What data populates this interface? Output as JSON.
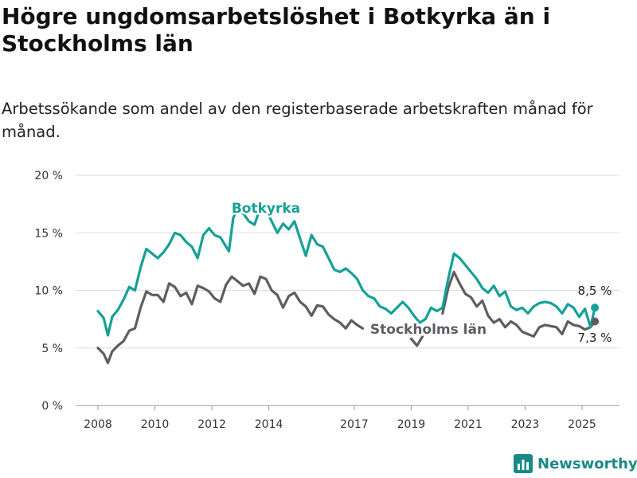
{
  "title": "Högre ungdomsarbetslöshet i Botkyrka än i Stockholms län",
  "subtitle": "Arbetssökande som andel av den registerbaserade arbetskraften månad för månad.",
  "brand": {
    "name": "Newsworthy",
    "color": "#1b8a86",
    "icon": "bar-chart-logo-icon"
  },
  "chart_data": {
    "type": "line",
    "ylim": [
      0,
      20
    ],
    "yticks": [
      0,
      5,
      10,
      15,
      20
    ],
    "ytick_labels": [
      "0 %",
      "5 %",
      "10 %",
      "15 %",
      "20 %"
    ],
    "xlim": [
      2007.5,
      2025.8
    ],
    "xticks": [
      2008,
      2010,
      2012,
      2014,
      2017,
      2019,
      2021,
      2023,
      2025
    ],
    "xtick_labels": [
      "2008",
      "2010",
      "2012",
      "2014",
      "2017",
      "2019",
      "2021",
      "2023",
      "2025"
    ],
    "grid": true,
    "series": [
      {
        "name": "Botkyrka",
        "color": "#14a196",
        "end_label": "8,5 %",
        "points": [
          [
            2008.0,
            8.2
          ],
          [
            2008.2,
            7.6
          ],
          [
            2008.35,
            6.1
          ],
          [
            2008.5,
            7.7
          ],
          [
            2008.7,
            8.3
          ],
          [
            2008.9,
            9.2
          ],
          [
            2009.1,
            10.3
          ],
          [
            2009.3,
            10.0
          ],
          [
            2009.5,
            12.0
          ],
          [
            2009.7,
            13.6
          ],
          [
            2009.9,
            13.2
          ],
          [
            2010.1,
            12.8
          ],
          [
            2010.3,
            13.3
          ],
          [
            2010.5,
            14.0
          ],
          [
            2010.7,
            15.0
          ],
          [
            2010.9,
            14.8
          ],
          [
            2011.1,
            14.2
          ],
          [
            2011.3,
            13.8
          ],
          [
            2011.5,
            12.8
          ],
          [
            2011.7,
            14.8
          ],
          [
            2011.9,
            15.4
          ],
          [
            2012.1,
            14.8
          ],
          [
            2012.3,
            14.6
          ],
          [
            2012.5,
            13.8
          ],
          [
            2012.6,
            13.4
          ],
          [
            2012.75,
            16.3
          ],
          [
            2012.9,
            17.0
          ],
          [
            2013.1,
            16.7
          ],
          [
            2013.3,
            16.0
          ],
          [
            2013.5,
            15.7
          ],
          [
            2013.7,
            17.2
          ],
          [
            2013.9,
            17.0
          ],
          [
            2014.1,
            16.0
          ],
          [
            2014.3,
            15.0
          ],
          [
            2014.5,
            15.8
          ],
          [
            2014.7,
            15.3
          ],
          [
            2014.9,
            16.0
          ],
          [
            2015.1,
            14.5
          ],
          [
            2015.3,
            13.0
          ],
          [
            2015.5,
            14.8
          ],
          [
            2015.7,
            14.0
          ],
          [
            2015.9,
            13.8
          ],
          [
            2016.1,
            12.8
          ],
          [
            2016.3,
            11.8
          ],
          [
            2016.5,
            11.6
          ],
          [
            2016.7,
            11.9
          ],
          [
            2016.9,
            11.5
          ],
          [
            2017.1,
            11.0
          ],
          [
            2017.3,
            10.0
          ],
          [
            2017.5,
            9.5
          ],
          [
            2017.7,
            9.3
          ],
          [
            2017.9,
            8.6
          ],
          [
            2018.1,
            8.4
          ],
          [
            2018.3,
            8.0
          ],
          [
            2018.5,
            8.5
          ],
          [
            2018.7,
            9.0
          ],
          [
            2018.9,
            8.5
          ],
          [
            2019.1,
            7.8
          ],
          [
            2019.3,
            7.2
          ],
          [
            2019.5,
            7.5
          ],
          [
            2019.7,
            8.5
          ],
          [
            2019.9,
            8.2
          ],
          [
            2020.1,
            8.5
          ],
          [
            2020.3,
            11.0
          ],
          [
            2020.5,
            13.2
          ],
          [
            2020.7,
            12.8
          ],
          [
            2020.9,
            12.2
          ],
          [
            2021.1,
            11.6
          ],
          [
            2021.3,
            11.0
          ],
          [
            2021.5,
            10.2
          ],
          [
            2021.7,
            9.8
          ],
          [
            2021.9,
            10.4
          ],
          [
            2022.1,
            9.5
          ],
          [
            2022.3,
            9.9
          ],
          [
            2022.5,
            8.6
          ],
          [
            2022.7,
            8.3
          ],
          [
            2022.9,
            8.5
          ],
          [
            2023.1,
            8.0
          ],
          [
            2023.3,
            8.6
          ],
          [
            2023.5,
            8.9
          ],
          [
            2023.7,
            9.0
          ],
          [
            2023.9,
            8.9
          ],
          [
            2024.1,
            8.6
          ],
          [
            2024.3,
            8.0
          ],
          [
            2024.5,
            8.8
          ],
          [
            2024.7,
            8.5
          ],
          [
            2024.9,
            7.7
          ],
          [
            2025.1,
            8.4
          ],
          [
            2025.3,
            6.8
          ],
          [
            2025.45,
            8.5
          ]
        ]
      },
      {
        "name": "Stockholms län",
        "color": "#5e5d63",
        "end_label": "7,3 %",
        "points": [
          [
            2008.0,
            5.0
          ],
          [
            2008.2,
            4.5
          ],
          [
            2008.35,
            3.7
          ],
          [
            2008.5,
            4.7
          ],
          [
            2008.7,
            5.2
          ],
          [
            2008.9,
            5.6
          ],
          [
            2009.1,
            6.5
          ],
          [
            2009.3,
            6.7
          ],
          [
            2009.5,
            8.5
          ],
          [
            2009.7,
            9.9
          ],
          [
            2009.9,
            9.6
          ],
          [
            2010.1,
            9.6
          ],
          [
            2010.3,
            9.0
          ],
          [
            2010.5,
            10.6
          ],
          [
            2010.7,
            10.3
          ],
          [
            2010.9,
            9.5
          ],
          [
            2011.1,
            9.8
          ],
          [
            2011.3,
            8.8
          ],
          [
            2011.5,
            10.4
          ],
          [
            2011.7,
            10.2
          ],
          [
            2011.9,
            9.9
          ],
          [
            2012.1,
            9.3
          ],
          [
            2012.3,
            9.0
          ],
          [
            2012.5,
            10.5
          ],
          [
            2012.7,
            11.2
          ],
          [
            2012.9,
            10.8
          ],
          [
            2013.1,
            10.4
          ],
          [
            2013.3,
            10.6
          ],
          [
            2013.5,
            9.7
          ],
          [
            2013.7,
            11.2
          ],
          [
            2013.9,
            11.0
          ],
          [
            2014.1,
            10.0
          ],
          [
            2014.3,
            9.6
          ],
          [
            2014.5,
            8.5
          ],
          [
            2014.7,
            9.5
          ],
          [
            2014.9,
            9.8
          ],
          [
            2015.1,
            9.0
          ],
          [
            2015.3,
            8.6
          ],
          [
            2015.5,
            7.8
          ],
          [
            2015.7,
            8.7
          ],
          [
            2015.9,
            8.6
          ],
          [
            2016.1,
            7.9
          ],
          [
            2016.3,
            7.5
          ],
          [
            2016.5,
            7.2
          ],
          [
            2016.7,
            6.7
          ],
          [
            2016.9,
            7.4
          ],
          [
            2017.1,
            7.0
          ],
          [
            2017.3,
            6.7
          ]
        ]
      },
      {
        "name": "Stockholms län",
        "color": "#5e5d63",
        "points": [
          [
            2019.0,
            5.8
          ],
          [
            2019.2,
            5.2
          ],
          [
            2019.4,
            6.0
          ]
        ]
      },
      {
        "name": "Stockholms län",
        "color": "#5e5d63",
        "points": [
          [
            2020.1,
            8.0
          ],
          [
            2020.3,
            10.2
          ],
          [
            2020.5,
            11.6
          ],
          [
            2020.7,
            10.6
          ],
          [
            2020.9,
            9.7
          ],
          [
            2021.1,
            9.4
          ],
          [
            2021.3,
            8.6
          ],
          [
            2021.5,
            9.1
          ],
          [
            2021.7,
            7.8
          ],
          [
            2021.9,
            7.2
          ],
          [
            2022.1,
            7.5
          ],
          [
            2022.3,
            6.8
          ],
          [
            2022.5,
            7.3
          ],
          [
            2022.7,
            7.0
          ],
          [
            2022.9,
            6.4
          ],
          [
            2023.1,
            6.2
          ],
          [
            2023.3,
            6.0
          ],
          [
            2023.5,
            6.8
          ],
          [
            2023.7,
            7.0
          ],
          [
            2023.9,
            6.9
          ],
          [
            2024.1,
            6.8
          ],
          [
            2024.3,
            6.2
          ],
          [
            2024.5,
            7.3
          ],
          [
            2024.7,
            7.0
          ],
          [
            2024.9,
            6.9
          ],
          [
            2025.1,
            6.6
          ],
          [
            2025.3,
            6.8
          ],
          [
            2025.45,
            7.3
          ]
        ]
      }
    ],
    "labels": {
      "botkyrka": "Botkyrka",
      "stockholm": "Stockholms län"
    }
  }
}
